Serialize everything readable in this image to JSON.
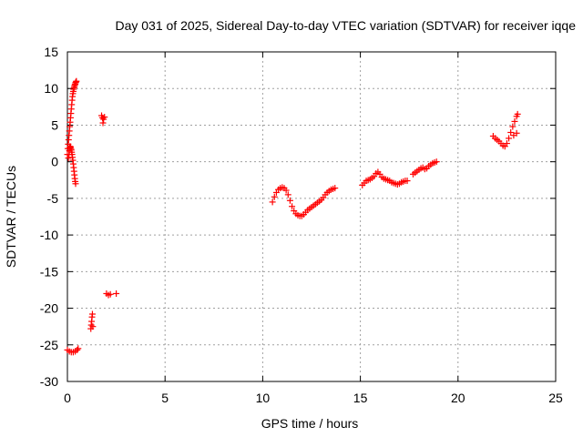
{
  "chart_data": {
    "type": "scatter",
    "title": "Day 031 of 2025, Sidereal Day-to-day VTEC variation (SDTVAR) for receiver iqqe",
    "xlabel": "GPS time / hours",
    "ylabel": "SDTVAR / TECUs",
    "xlim": [
      0,
      25
    ],
    "ylim": [
      -30,
      15
    ],
    "xticks": [
      0,
      5,
      10,
      15,
      20,
      25
    ],
    "yticks": [
      -30,
      -25,
      -20,
      -15,
      -10,
      -5,
      0,
      5,
      10,
      15
    ],
    "xtick_labels": [
      "0",
      "5",
      "10",
      "15",
      "20",
      "25"
    ],
    "ytick_labels": [
      "-30",
      "-25",
      "-20",
      "-15",
      "-10",
      "-5",
      "0",
      "5",
      "10",
      "15"
    ],
    "grid": true,
    "marker": "+",
    "color": "#ff0000",
    "series": [
      {
        "name": "SDTVAR",
        "points": [
          [
            0.0,
            1.0
          ],
          [
            0.02,
            1.8
          ],
          [
            0.04,
            2.4
          ],
          [
            0.06,
            3.0
          ],
          [
            0.08,
            3.6
          ],
          [
            0.1,
            4.2
          ],
          [
            0.12,
            4.8
          ],
          [
            0.14,
            5.4
          ],
          [
            0.16,
            6.0
          ],
          [
            0.18,
            6.6
          ],
          [
            0.2,
            7.2
          ],
          [
            0.22,
            7.8
          ],
          [
            0.24,
            8.4
          ],
          [
            0.26,
            8.9
          ],
          [
            0.28,
            9.3
          ],
          [
            0.3,
            9.6
          ],
          [
            0.32,
            9.9
          ],
          [
            0.34,
            10.1
          ],
          [
            0.36,
            10.3
          ],
          [
            0.38,
            10.5
          ],
          [
            0.4,
            10.6
          ],
          [
            0.42,
            10.8
          ],
          [
            0.44,
            10.9
          ],
          [
            0.46,
            11.0
          ],
          [
            0.05,
            0.5
          ],
          [
            0.08,
            1.0
          ],
          [
            0.1,
            1.5
          ],
          [
            0.12,
            1.9
          ],
          [
            0.14,
            2.1
          ],
          [
            0.16,
            2.0
          ],
          [
            0.18,
            1.8
          ],
          [
            0.2,
            1.6
          ],
          [
            0.22,
            1.3
          ],
          [
            0.24,
            1.0
          ],
          [
            0.26,
            0.6
          ],
          [
            0.28,
            0.2
          ],
          [
            0.3,
            -0.3
          ],
          [
            0.32,
            -0.8
          ],
          [
            0.34,
            -1.3
          ],
          [
            0.36,
            -1.8
          ],
          [
            0.38,
            -2.3
          ],
          [
            0.4,
            -2.7
          ],
          [
            0.42,
            -3.0
          ],
          [
            0.0,
            -25.7
          ],
          [
            0.1,
            -25.9
          ],
          [
            0.2,
            -26.0
          ],
          [
            0.3,
            -26.0
          ],
          [
            0.4,
            -25.9
          ],
          [
            0.5,
            -25.7
          ],
          [
            0.55,
            -25.5
          ],
          [
            1.2,
            -22.8
          ],
          [
            1.22,
            -22.3
          ],
          [
            1.24,
            -21.8
          ],
          [
            1.26,
            -21.2
          ],
          [
            1.28,
            -20.8
          ],
          [
            1.3,
            -22.5
          ],
          [
            1.75,
            6.3
          ],
          [
            1.8,
            6.0
          ],
          [
            1.85,
            5.8
          ],
          [
            1.9,
            6.1
          ],
          [
            1.82,
            5.3
          ],
          [
            2.0,
            -18.0
          ],
          [
            2.1,
            -18.2
          ],
          [
            2.2,
            -18.1
          ],
          [
            2.5,
            -18.0
          ],
          [
            10.5,
            -5.5
          ],
          [
            10.6,
            -4.8
          ],
          [
            10.7,
            -4.2
          ],
          [
            10.8,
            -3.8
          ],
          [
            10.9,
            -3.6
          ],
          [
            11.0,
            -3.5
          ],
          [
            11.1,
            -3.6
          ],
          [
            11.2,
            -3.9
          ],
          [
            11.3,
            -4.5
          ],
          [
            11.4,
            -5.3
          ],
          [
            11.5,
            -6.1
          ],
          [
            11.6,
            -6.7
          ],
          [
            11.7,
            -7.1
          ],
          [
            11.8,
            -7.3
          ],
          [
            11.9,
            -7.4
          ],
          [
            12.0,
            -7.4
          ],
          [
            12.1,
            -7.2
          ],
          [
            12.2,
            -6.9
          ],
          [
            12.3,
            -6.6
          ],
          [
            12.4,
            -6.4
          ],
          [
            12.5,
            -6.2
          ],
          [
            12.6,
            -6.0
          ],
          [
            12.7,
            -5.8
          ],
          [
            12.8,
            -5.6
          ],
          [
            12.9,
            -5.4
          ],
          [
            13.0,
            -5.2
          ],
          [
            13.1,
            -4.9
          ],
          [
            13.2,
            -4.5
          ],
          [
            13.3,
            -4.2
          ],
          [
            13.4,
            -4.0
          ],
          [
            13.5,
            -3.8
          ],
          [
            13.6,
            -3.7
          ],
          [
            13.7,
            -3.6
          ],
          [
            15.1,
            -3.2
          ],
          [
            15.2,
            -2.9
          ],
          [
            15.3,
            -2.6
          ],
          [
            15.4,
            -2.5
          ],
          [
            15.5,
            -2.4
          ],
          [
            15.6,
            -2.2
          ],
          [
            15.7,
            -2.0
          ],
          [
            15.8,
            -1.6
          ],
          [
            15.9,
            -1.4
          ],
          [
            16.0,
            -1.7
          ],
          [
            16.1,
            -2.1
          ],
          [
            16.2,
            -2.3
          ],
          [
            16.3,
            -2.4
          ],
          [
            16.4,
            -2.5
          ],
          [
            16.5,
            -2.6
          ],
          [
            16.6,
            -2.8
          ],
          [
            16.7,
            -2.9
          ],
          [
            16.8,
            -3.0
          ],
          [
            16.9,
            -3.1
          ],
          [
            17.0,
            -3.0
          ],
          [
            17.1,
            -2.8
          ],
          [
            17.2,
            -2.7
          ],
          [
            17.3,
            -2.6
          ],
          [
            17.4,
            -2.6
          ],
          [
            17.7,
            -1.7
          ],
          [
            17.8,
            -1.5
          ],
          [
            17.9,
            -1.3
          ],
          [
            18.0,
            -1.1
          ],
          [
            18.1,
            -0.9
          ],
          [
            18.2,
            -0.8
          ],
          [
            18.3,
            -1.0
          ],
          [
            18.4,
            -0.9
          ],
          [
            18.5,
            -0.6
          ],
          [
            18.6,
            -0.4
          ],
          [
            18.7,
            -0.2
          ],
          [
            18.8,
            -0.1
          ],
          [
            18.9,
            0.0
          ],
          [
            21.8,
            3.5
          ],
          [
            21.9,
            3.2
          ],
          [
            22.0,
            3.0
          ],
          [
            22.1,
            2.8
          ],
          [
            22.2,
            2.5
          ],
          [
            22.3,
            2.2
          ],
          [
            22.4,
            2.1
          ],
          [
            22.5,
            2.5
          ],
          [
            22.6,
            3.2
          ],
          [
            22.7,
            4.0
          ],
          [
            22.8,
            4.8
          ],
          [
            22.9,
            5.5
          ],
          [
            23.0,
            6.2
          ],
          [
            23.05,
            6.5
          ],
          [
            22.85,
            3.6
          ],
          [
            23.0,
            3.9
          ]
        ]
      }
    ]
  }
}
